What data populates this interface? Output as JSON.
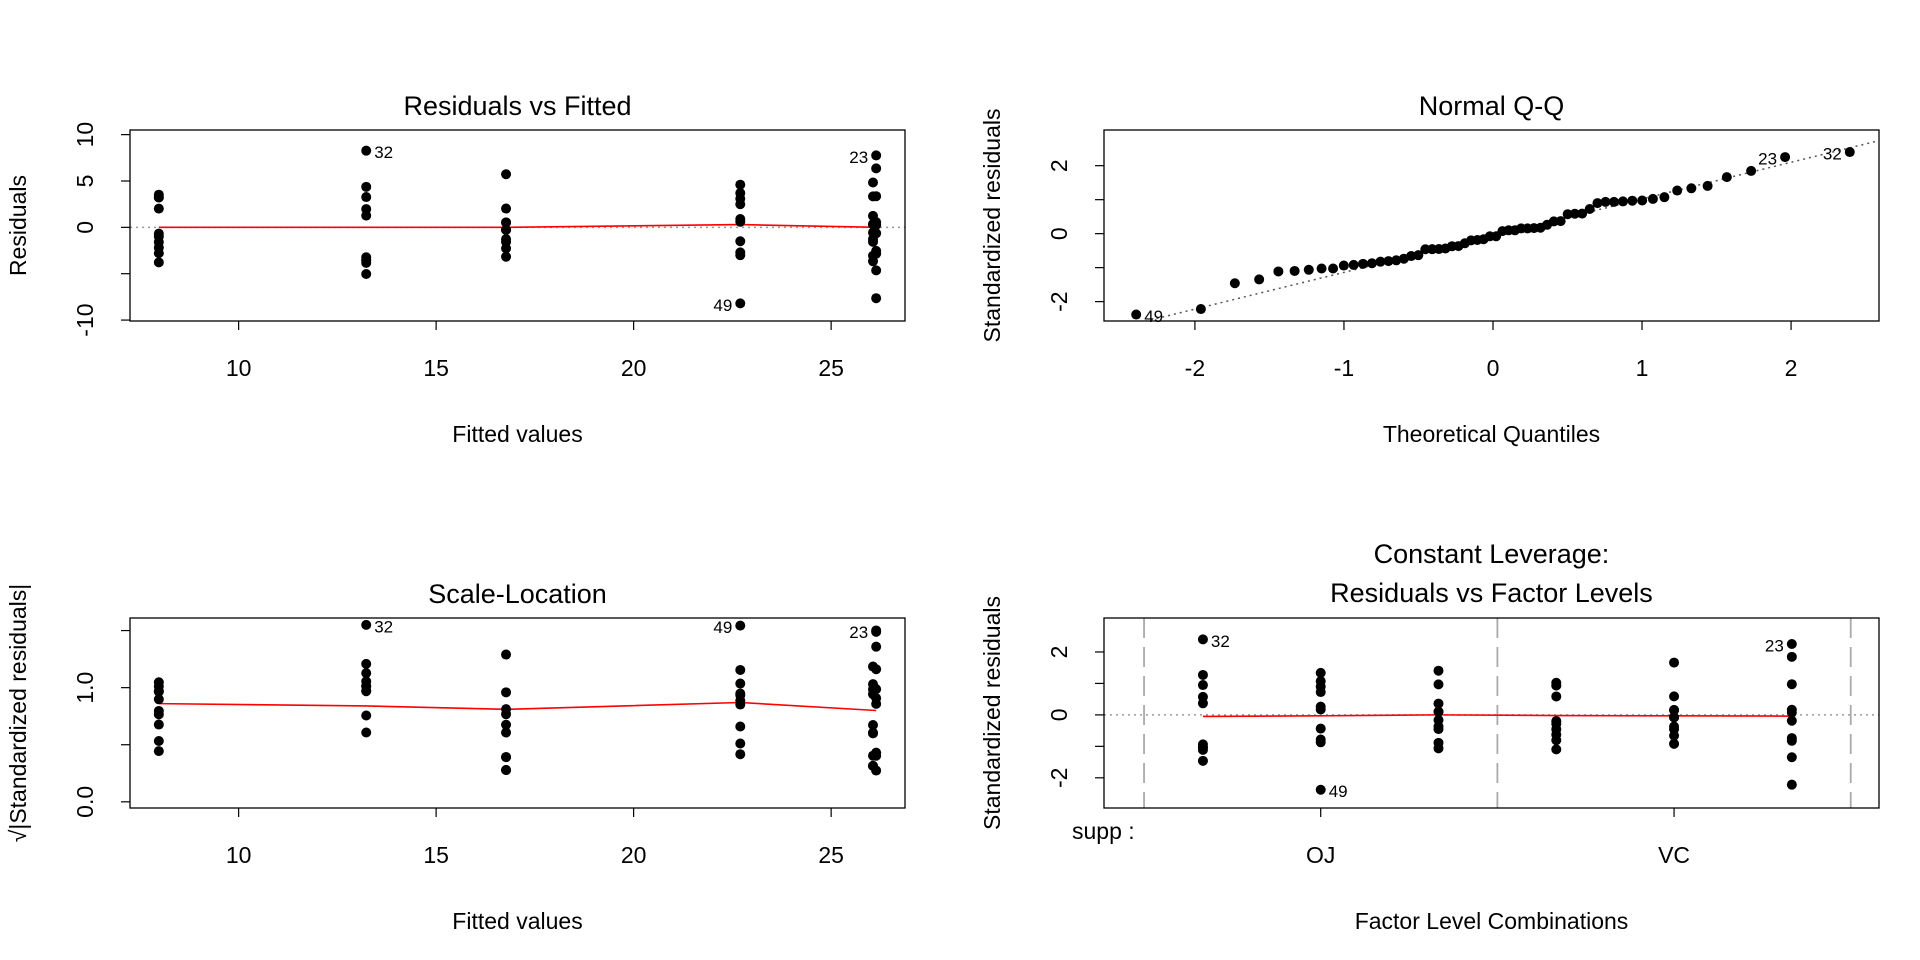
{
  "chart_data": [
    {
      "type": "scatter",
      "title": "Residuals vs Fitted",
      "xlabel": "Fitted values",
      "ylabel": "Residuals",
      "color": "#000000",
      "x": [
        7.98,
        7.98,
        7.98,
        7.98,
        7.98,
        7.98,
        7.98,
        7.98,
        7.98,
        7.98,
        16.77,
        16.77,
        16.77,
        16.77,
        16.77,
        16.77,
        16.77,
        16.77,
        16.77,
        16.77,
        26.14,
        26.14,
        26.14,
        26.14,
        26.14,
        26.14,
        26.14,
        26.14,
        26.14,
        26.14,
        13.23,
        13.23,
        13.23,
        13.23,
        13.23,
        13.23,
        13.23,
        13.23,
        13.23,
        13.23,
        22.7,
        22.7,
        22.7,
        22.7,
        22.7,
        22.7,
        22.7,
        22.7,
        22.7,
        22.7,
        26.06,
        26.06,
        26.06,
        26.06,
        26.06,
        26.06,
        26.06,
        26.06,
        26.06,
        26.06
      ],
      "values": [
        -3.78,
        3.52,
        -0.68,
        -2.18,
        -1.58,
        2.02,
        3.22,
        3.22,
        -2.78,
        -0.98,
        -0.27,
        -0.27,
        -1.57,
        0.53,
        5.73,
        0.53,
        -3.17,
        -2.27,
        2.03,
        -1.27,
        -2.54,
        -7.64,
        7.76,
        -0.64,
        0.26,
        6.36,
        0.56,
        -4.64,
        -2.84,
        3.36,
        1.97,
        8.27,
        4.37,
        -3.53,
        1.27,
        -3.23,
        -5.03,
        -3.83,
        3.27,
        -3.53,
        -3.0,
        0.6,
        0.9,
        3.7,
        -2.7,
        2.5,
        3.1,
        -1.5,
        -8.2,
        4.6,
        -0.56,
        0.34,
        -3.66,
        -1.56,
        -1.26,
        4.84,
        0.34,
        1.24,
        3.34,
        -3.06
      ],
      "point_labels": [
        null,
        null,
        null,
        null,
        null,
        null,
        null,
        null,
        null,
        null,
        null,
        null,
        null,
        null,
        null,
        null,
        null,
        null,
        null,
        null,
        null,
        null,
        "23",
        null,
        null,
        null,
        null,
        null,
        null,
        null,
        null,
        "32",
        null,
        null,
        null,
        null,
        null,
        null,
        null,
        null,
        null,
        null,
        null,
        null,
        null,
        null,
        null,
        null,
        "49",
        null,
        null,
        null,
        null,
        null,
        null,
        null,
        null,
        null,
        null,
        null
      ],
      "smooth": {
        "color": "#ff0000",
        "x": [
          7.98,
          13.23,
          16.77,
          22.7,
          26.14
        ],
        "values": [
          0,
          0,
          0,
          0.3,
          0
        ]
      },
      "hline": 0,
      "xlim": [
        7.25,
        26.87
      ],
      "ylim": [
        -10.1,
        10.5
      ],
      "xticks": [
        10,
        15,
        20,
        25
      ],
      "yticks": [
        -10,
        0,
        5,
        10
      ],
      "yminor": [
        -5
      ]
    },
    {
      "type": "scatter",
      "title": "Normal Q-Q",
      "xlabel": "Theoretical Quantiles",
      "ylabel": "Standardized residuals",
      "color": "#000000",
      "x": [
        -2.394,
        -1.96,
        -1.732,
        -1.569,
        -1.44,
        -1.331,
        -1.236,
        -1.15,
        -1.073,
        -1.001,
        -0.935,
        -0.872,
        -0.812,
        -0.755,
        -0.701,
        -0.649,
        -0.598,
        -0.549,
        -0.501,
        -0.454,
        -0.408,
        -0.363,
        -0.319,
        -0.275,
        -0.232,
        -0.189,
        -0.147,
        -0.105,
        -0.063,
        -0.021,
        0.021,
        0.063,
        0.105,
        0.147,
        0.189,
        0.232,
        0.275,
        0.319,
        0.363,
        0.408,
        0.454,
        0.501,
        0.549,
        0.598,
        0.649,
        0.701,
        0.755,
        0.812,
        0.872,
        0.935,
        1.001,
        1.073,
        1.15,
        1.236,
        1.331,
        1.44,
        1.569,
        1.732,
        1.96,
        2.394
      ],
      "values": [
        -2.38,
        -2.218,
        -1.46,
        -1.347,
        -1.112,
        -1.097,
        -1.063,
        -1.025,
        -1.025,
        -0.938,
        -0.92,
        -0.888,
        -0.871,
        -0.824,
        -0.807,
        -0.784,
        -0.737,
        -0.659,
        -0.633,
        -0.459,
        -0.456,
        -0.453,
        -0.435,
        -0.369,
        -0.366,
        -0.284,
        -0.197,
        -0.186,
        -0.163,
        -0.078,
        -0.078,
        0.075,
        0.099,
        0.099,
        0.154,
        0.154,
        0.163,
        0.174,
        0.261,
        0.36,
        0.369,
        0.572,
        0.586,
        0.589,
        0.726,
        0.9,
        0.935,
        0.935,
        0.949,
        0.97,
        0.975,
        1.022,
        1.074,
        1.269,
        1.335,
        1.405,
        1.663,
        1.846,
        2.253,
        2.401
      ],
      "point_labels": [
        "49",
        null,
        null,
        null,
        null,
        null,
        null,
        null,
        null,
        null,
        null,
        null,
        null,
        null,
        null,
        null,
        null,
        null,
        null,
        null,
        null,
        null,
        null,
        null,
        null,
        null,
        null,
        null,
        null,
        null,
        null,
        null,
        null,
        null,
        null,
        null,
        null,
        null,
        null,
        null,
        null,
        null,
        null,
        null,
        null,
        null,
        null,
        null,
        null,
        null,
        null,
        null,
        null,
        null,
        null,
        null,
        null,
        null,
        "23",
        "32"
      ],
      "qqline": {
        "intercept": -0.06,
        "slope": 1.08
      },
      "xlim": [
        -2.61,
        2.59
      ],
      "ylim": [
        -2.57,
        3.05
      ],
      "xticks": [
        -2,
        -1,
        0,
        1,
        2
      ],
      "yticks": [
        -2,
        0,
        2
      ],
      "yminor": [
        -1,
        1
      ]
    },
    {
      "type": "scatter",
      "title": "Scale-Location",
      "xlabel": "Fitted values",
      "ylabel": "√|Standardized residuals|",
      "color": "#000000",
      "x": [
        7.98,
        7.98,
        7.98,
        7.98,
        7.98,
        7.98,
        7.98,
        7.98,
        7.98,
        7.98,
        16.77,
        16.77,
        16.77,
        16.77,
        16.77,
        16.77,
        16.77,
        16.77,
        16.77,
        16.77,
        26.14,
        26.14,
        26.14,
        26.14,
        26.14,
        26.14,
        26.14,
        26.14,
        26.14,
        26.14,
        13.23,
        13.23,
        13.23,
        13.23,
        13.23,
        13.23,
        13.23,
        13.23,
        13.23,
        13.23,
        22.7,
        22.7,
        22.7,
        22.7,
        22.7,
        22.7,
        22.7,
        22.7,
        22.7,
        22.7,
        26.06,
        26.06,
        26.06,
        26.06,
        26.06,
        26.06,
        26.06,
        26.06,
        26.06,
        26.06
      ],
      "values": [
        1.047,
        1.011,
        0.444,
        0.796,
        0.677,
        0.766,
        0.967,
        0.967,
        0.898,
        0.533,
        0.279,
        0.279,
        0.675,
        0.392,
        1.29,
        0.392,
        0.959,
        0.812,
        0.767,
        0.607,
        0.858,
        1.489,
        1.501,
        0.431,
        0.274,
        1.359,
        0.404,
        1.161,
        0.908,
        0.987,
        0.756,
        1.55,
        1.127,
        1.012,
        0.607,
        0.969,
        1.208,
        1.055,
        0.974,
        1.012,
        0.933,
        0.417,
        0.511,
        1.036,
        0.885,
        0.852,
        0.949,
        0.66,
        1.543,
        1.155,
        0.404,
        0.315,
        1.031,
        0.673,
        0.605,
        1.185,
        0.315,
        0.6,
        0.985,
        0.942
      ],
      "point_labels": [
        null,
        null,
        null,
        null,
        null,
        null,
        null,
        null,
        null,
        null,
        null,
        null,
        null,
        null,
        null,
        null,
        null,
        null,
        null,
        null,
        null,
        null,
        "23",
        null,
        null,
        null,
        null,
        null,
        null,
        null,
        null,
        "32",
        null,
        null,
        null,
        null,
        null,
        null,
        null,
        null,
        null,
        null,
        null,
        null,
        null,
        null,
        null,
        null,
        "49",
        null,
        null,
        null,
        null,
        null,
        null,
        null,
        null,
        null,
        null,
        null
      ],
      "smooth": {
        "color": "#ff0000",
        "x": [
          7.98,
          13.23,
          16.77,
          22.7,
          26.14
        ],
        "values": [
          0.86,
          0.84,
          0.81,
          0.87,
          0.8
        ]
      },
      "xlim": [
        7.25,
        26.87
      ],
      "ylim": [
        -0.054,
        1.61
      ],
      "xticks": [
        10,
        15,
        20,
        25
      ],
      "yticks": [
        {
          "value": 0,
          "label": "0.0"
        },
        {
          "value": 1,
          "label": "1.0"
        }
      ],
      "yminor": [
        0.5,
        1.5
      ]
    },
    {
      "type": "scatter",
      "title": [
        "Constant Leverage:",
        "Residuals vs Factor Levels"
      ],
      "xlabel": "Factor Level Combinations",
      "ylabel": "Standardized residuals",
      "factor_label": "supp :",
      "color": "#000000",
      "x": [
        4,
        4,
        4,
        4,
        4,
        4,
        4,
        4,
        4,
        4,
        5,
        5,
        5,
        5,
        5,
        5,
        5,
        5,
        5,
        5,
        6,
        6,
        6,
        6,
        6,
        6,
        6,
        6,
        6,
        6,
        1,
        1,
        1,
        1,
        1,
        1,
        1,
        1,
        1,
        1,
        2,
        2,
        2,
        2,
        2,
        2,
        2,
        2,
        2,
        2,
        3,
        3,
        3,
        3,
        3,
        3,
        3,
        3,
        3,
        3
      ],
      "values": [
        -1.097,
        1.022,
        -0.197,
        -0.633,
        -0.459,
        0.586,
        0.935,
        0.935,
        -0.807,
        -0.284,
        -0.078,
        -0.078,
        -0.456,
        0.154,
        1.663,
        0.154,
        -0.92,
        -0.659,
        0.589,
        -0.369,
        -0.737,
        -2.218,
        2.253,
        -0.186,
        0.075,
        1.846,
        0.163,
        -1.347,
        -0.824,
        0.975,
        0.572,
        2.401,
        1.269,
        -1.025,
        0.369,
        -0.938,
        -1.46,
        -1.112,
        0.949,
        -1.025,
        -0.871,
        0.174,
        0.261,
        1.074,
        -0.784,
        0.726,
        0.9,
        -0.435,
        -2.38,
        1.335,
        -0.163,
        0.099,
        -1.063,
        -0.453,
        -0.366,
        1.405,
        0.099,
        0.36,
        0.97,
        -0.888
      ],
      "point_labels": [
        null,
        null,
        null,
        null,
        null,
        null,
        null,
        null,
        null,
        null,
        null,
        null,
        null,
        null,
        null,
        null,
        null,
        null,
        null,
        null,
        null,
        null,
        "23",
        null,
        null,
        null,
        null,
        null,
        null,
        null,
        null,
        "32",
        null,
        null,
        null,
        null,
        null,
        null,
        null,
        null,
        null,
        null,
        null,
        null,
        null,
        null,
        null,
        null,
        "49",
        null,
        null,
        null,
        null,
        null,
        null,
        null,
        null,
        null,
        null,
        null
      ],
      "smooth": {
        "color": "#ff0000",
        "x": [
          1,
          2,
          3,
          4,
          5,
          6
        ],
        "values": [
          -0.05,
          -0.03,
          0,
          -0.02,
          -0.03,
          -0.04
        ]
      },
      "hline": 0,
      "separators": [
        0.5,
        3.5,
        6.5
      ],
      "xlim": [
        0.16,
        6.74
      ],
      "ylim": [
        -2.96,
        3.08
      ],
      "xticks": [
        {
          "value": 2,
          "label": "OJ"
        },
        {
          "value": 5,
          "label": "VC"
        }
      ],
      "yticks": [
        -2,
        0,
        2
      ],
      "yminor": [
        -1,
        1
      ]
    }
  ]
}
